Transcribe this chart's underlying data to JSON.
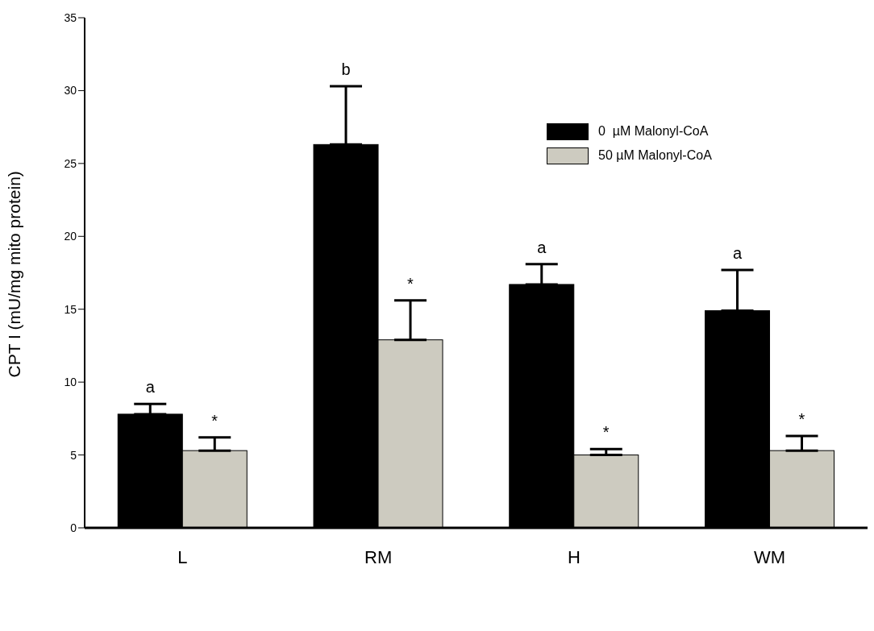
{
  "chart_data": {
    "type": "bar",
    "ylabel": "CPT I (mU/mg mito protein)",
    "categories": [
      "L",
      "RM",
      "H",
      "WM"
    ],
    "series": [
      {
        "name": "0  µM Malonyl-CoA",
        "color": "#000000",
        "values": [
          7.8,
          26.3,
          16.7,
          14.9
        ],
        "errors": [
          0.7,
          4.0,
          1.4,
          2.8
        ]
      },
      {
        "name": "50 µM Malonyl-CoA",
        "color": "#cdcbc0",
        "values": [
          5.3,
          12.9,
          5.0,
          5.3
        ],
        "errors": [
          0.9,
          2.7,
          0.4,
          1.0
        ]
      }
    ],
    "annotations": [
      "a",
      {
        "text": "*",
        "x": "L",
        "y": 6.2
      },
      "b",
      {
        "text": "*",
        "x": "RM",
        "y": 15.6
      },
      "a",
      {
        "text": "*",
        "x": "H",
        "y": 5.4
      },
      "a",
      {
        "text": "*",
        "x": "WM",
        "y": 6.3
      }
    ],
    "ylim": [
      0,
      35
    ],
    "yticks": [
      0,
      5,
      10,
      15,
      20,
      25,
      30,
      35
    ],
    "grid": false,
    "legend": "top right"
  }
}
